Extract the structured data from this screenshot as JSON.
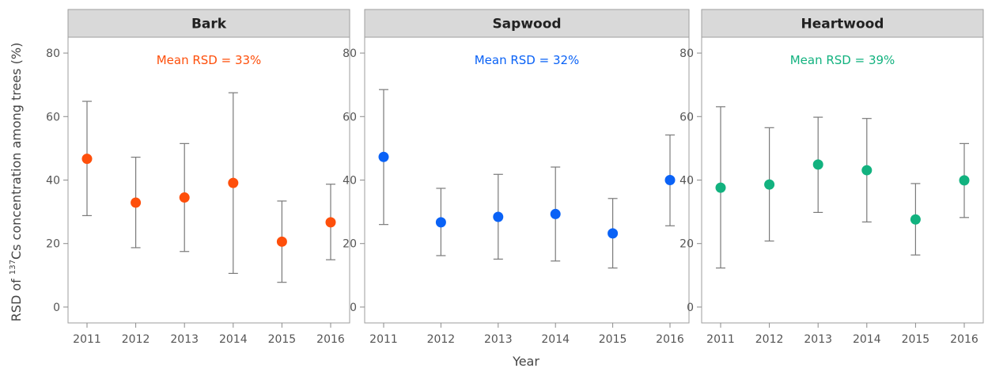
{
  "chart_data": {
    "type": "scatter",
    "ylabel": {
      "pre": "RSD of ",
      "sup": "137",
      "post": "Cs concentration among trees (%)"
    },
    "xlabel": "Year",
    "categories": [
      "2011",
      "2012",
      "2013",
      "2014",
      "2015",
      "2016"
    ],
    "ylim": [
      -5,
      85
    ],
    "yticks": [
      0,
      20,
      40,
      60,
      80
    ],
    "grid": false,
    "panels": [
      {
        "title": "Bark",
        "annotation": "Mean RSD = 33%",
        "color": "#fe4f0b",
        "values": [
          46.7,
          32.9,
          34.5,
          39.1,
          20.6,
          26.7
        ],
        "lower": [
          28.8,
          18.7,
          17.5,
          10.6,
          7.8,
          14.9
        ],
        "upper": [
          64.8,
          47.2,
          51.5,
          67.5,
          33.4,
          38.7
        ]
      },
      {
        "title": "Sapwood",
        "annotation": "Mean RSD = 32%",
        "color": "#0a62f6",
        "values": [
          47.3,
          26.7,
          28.4,
          29.3,
          23.2,
          40.0
        ],
        "lower": [
          26.0,
          16.2,
          15.1,
          14.5,
          12.3,
          25.6
        ],
        "upper": [
          68.5,
          37.4,
          41.8,
          44.1,
          34.2,
          54.2
        ]
      },
      {
        "title": "Heartwood",
        "annotation": "Mean RSD = 39%",
        "color": "#12b27f",
        "values": [
          37.6,
          38.6,
          44.9,
          43.1,
          27.6,
          39.9
        ],
        "lower": [
          12.3,
          20.8,
          29.8,
          26.8,
          16.4,
          28.2
        ],
        "upper": [
          63.1,
          56.5,
          59.8,
          59.4,
          38.9,
          51.5
        ]
      }
    ]
  }
}
